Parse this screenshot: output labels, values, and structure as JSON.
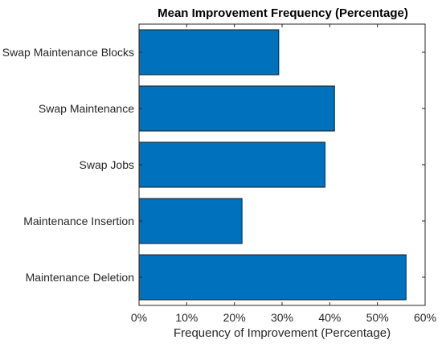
{
  "chart_data": {
    "type": "bar",
    "orientation": "horizontal",
    "title": "Mean Improvement Frequency (Percentage)",
    "xlabel": "Frequency of Improvement (Percentage)",
    "ylabel": "",
    "categories": [
      "Swap Maintenance Blocks",
      "Swap Maintenance",
      "Swap Jobs",
      "Maintenance Insertion",
      "Maintenance Deletion"
    ],
    "values": [
      29.3,
      41.0,
      39.0,
      21.6,
      56.0
    ],
    "xlim": [
      0,
      60
    ],
    "x_ticks": [
      0,
      10,
      20,
      30,
      40,
      50,
      60
    ],
    "x_tick_labels": [
      "0%",
      "10%",
      "20%",
      "30%",
      "40%",
      "50%",
      "60%"
    ],
    "grid": false,
    "legend": "none",
    "bar_color": "#0072BD",
    "bar_edge_color": "#1a1a1a",
    "axis_color": "#262626"
  }
}
